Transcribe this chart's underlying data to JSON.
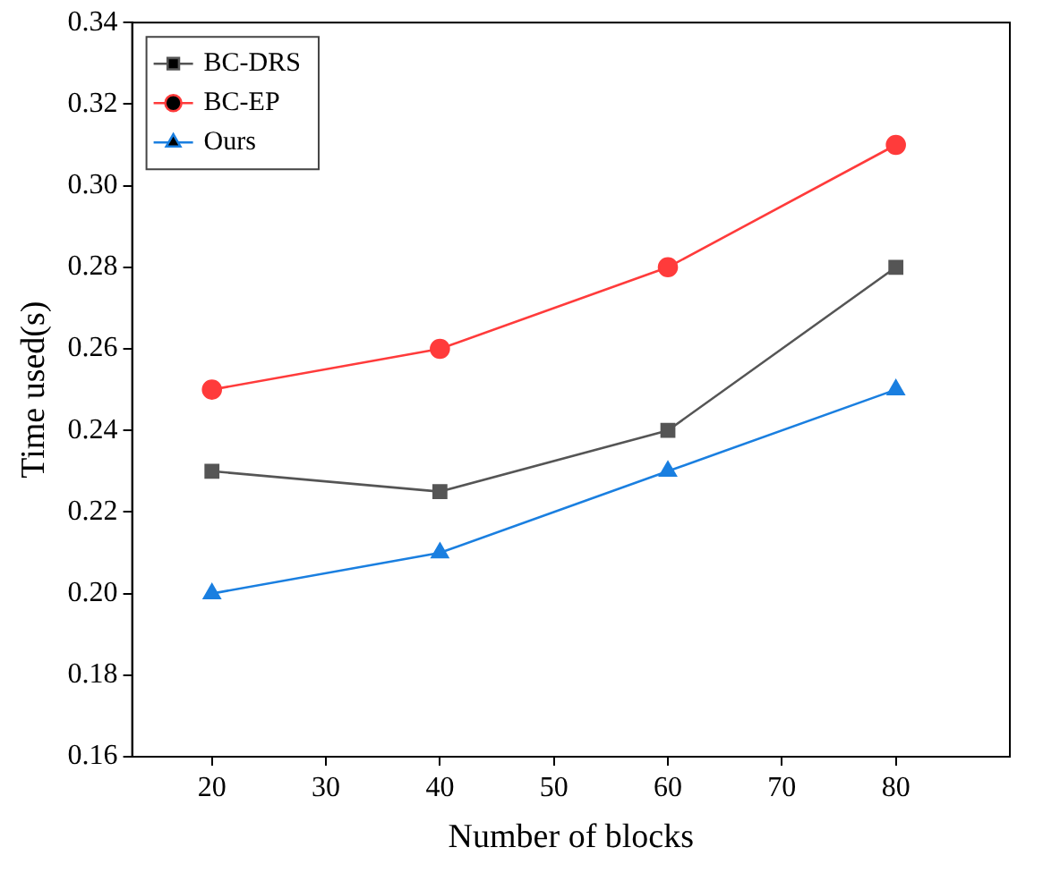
{
  "chart_data": {
    "type": "line",
    "xlabel": "Number of blocks",
    "ylabel": "Time used(s)",
    "x": [
      20,
      40,
      60,
      80
    ],
    "series": [
      {
        "name": "BC-DRS",
        "color": "#555555",
        "marker": "square",
        "values": [
          0.23,
          0.225,
          0.24,
          0.28
        ]
      },
      {
        "name": "BC-EP",
        "color": "#ff3b3b",
        "marker": "circle",
        "values": [
          0.25,
          0.26,
          0.28,
          0.31
        ]
      },
      {
        "name": "Ours",
        "color": "#1a7fe0",
        "marker": "triangle",
        "values": [
          0.2,
          0.21,
          0.23,
          0.25
        ]
      }
    ],
    "xlim": [
      13,
      90
    ],
    "xticks": [
      20,
      30,
      40,
      50,
      60,
      70,
      80
    ],
    "ylim": [
      0.16,
      0.34
    ],
    "yticks": [
      0.16,
      0.18,
      {
        "value": 0.2,
        "label": "0.20"
      },
      0.22,
      0.24,
      0.26,
      0.28,
      {
        "value": 0.3,
        "label": "0.30"
      },
      0.32,
      0.34
    ],
    "grid": false,
    "legend": "top left",
    "line_style": "solid"
  }
}
